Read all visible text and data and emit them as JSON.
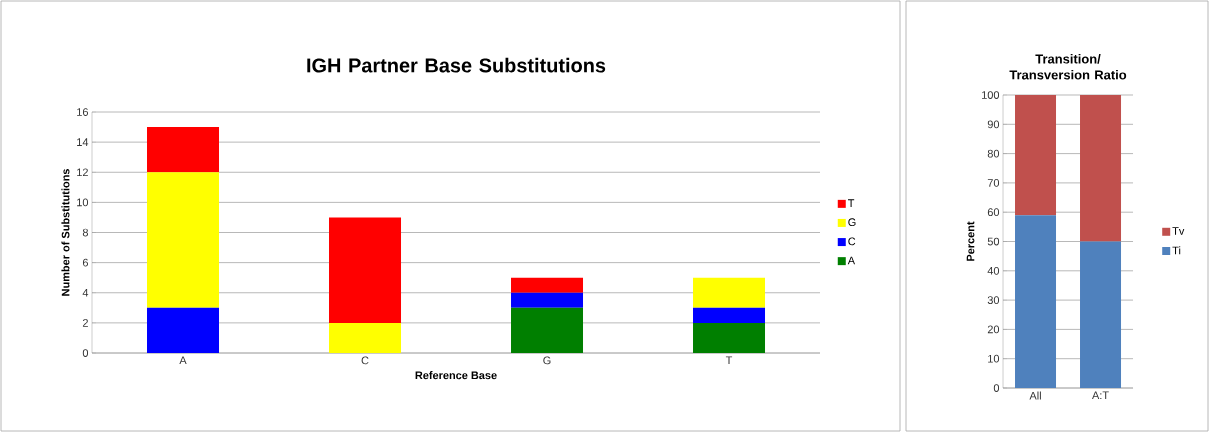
{
  "chart_data": [
    {
      "type": "bar",
      "title": "IGH Partner Base Substitutions",
      "xlabel": "Reference Base",
      "ylabel": "Number of Substitutions",
      "categories": [
        "A",
        "C",
        "G",
        "T"
      ],
      "stacked": true,
      "ylim": [
        0,
        16
      ],
      "yticks": [
        0,
        2,
        4,
        6,
        8,
        10,
        12,
        14,
        16
      ],
      "grid": "y",
      "legend": "right",
      "series": [
        {
          "name": "A",
          "color": "#007f00",
          "values": [
            0,
            0,
            3,
            2
          ]
        },
        {
          "name": "C",
          "color": "#0000ff",
          "values": [
            3,
            0,
            1,
            1
          ]
        },
        {
          "name": "G",
          "color": "#ffff00",
          "values": [
            9,
            2,
            0,
            2
          ]
        },
        {
          "name": "T",
          "color": "#ff0000",
          "values": [
            3,
            7,
            1,
            0
          ]
        }
      ]
    },
    {
      "type": "bar",
      "title": "Transition/ Transversion Ratio",
      "ylabel": "Percent",
      "categories": [
        "All",
        "A:T"
      ],
      "stacked": true,
      "ylim": [
        0,
        100
      ],
      "yticks": [
        0,
        10,
        20,
        30,
        40,
        50,
        60,
        70,
        80,
        90,
        100
      ],
      "grid": "y",
      "legend": "right",
      "series": [
        {
          "name": "Ti",
          "color": "#4f81bd",
          "values": [
            59,
            50
          ]
        },
        {
          "name": "Tv",
          "color": "#c0504d",
          "values": [
            41,
            50
          ]
        }
      ]
    }
  ]
}
